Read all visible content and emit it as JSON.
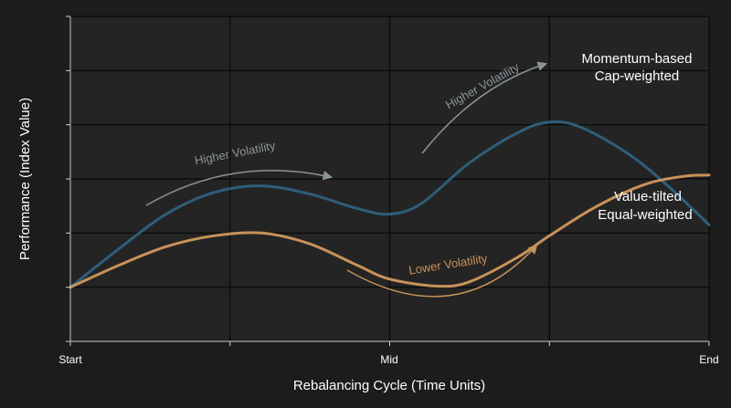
{
  "chart_data": {
    "type": "line",
    "title": "",
    "xlabel": "Rebalancing Cycle (Time Units)",
    "ylabel": "Performance (Index Value)",
    "x_tick_labels": [
      "Start",
      "Mid",
      "End"
    ],
    "xlim": [
      0,
      4
    ],
    "ylim": [
      0,
      6
    ],
    "grid": true,
    "series": [
      {
        "name": "Momentum-based Cap-weighted",
        "label_lines": [
          "Momentum-based",
          "Cap-weighted"
        ],
        "color": "#2f5e7a",
        "points": [
          [
            0,
            1.0
          ],
          [
            0.3,
            1.7
          ],
          [
            0.6,
            2.35
          ],
          [
            0.9,
            2.75
          ],
          [
            1.2,
            2.87
          ],
          [
            1.5,
            2.72
          ],
          [
            1.8,
            2.45
          ],
          [
            2.0,
            2.35
          ],
          [
            2.2,
            2.55
          ],
          [
            2.5,
            3.3
          ],
          [
            2.8,
            3.85
          ],
          [
            3.0,
            4.05
          ],
          [
            3.2,
            3.95
          ],
          [
            3.5,
            3.45
          ],
          [
            3.75,
            2.85
          ],
          [
            4.0,
            2.15
          ]
        ]
      },
      {
        "name": "Value-tilted Equal-weighted",
        "label_lines": [
          "Value-tilted",
          "Equal-weighted"
        ],
        "color": "#c8925a",
        "points": [
          [
            0,
            1.0
          ],
          [
            0.3,
            1.4
          ],
          [
            0.6,
            1.75
          ],
          [
            0.9,
            1.95
          ],
          [
            1.2,
            2.0
          ],
          [
            1.5,
            1.8
          ],
          [
            1.8,
            1.4
          ],
          [
            2.0,
            1.15
          ],
          [
            2.3,
            1.02
          ],
          [
            2.5,
            1.1
          ],
          [
            2.8,
            1.55
          ],
          [
            3.0,
            1.95
          ],
          [
            3.3,
            2.5
          ],
          [
            3.6,
            2.9
          ],
          [
            3.85,
            3.05
          ],
          [
            4.0,
            3.07
          ]
        ]
      }
    ],
    "annotations": [
      {
        "text": "Higher Volatility",
        "color": "#8a9598",
        "arrow_color": "#8a9598",
        "series": 0
      },
      {
        "text": "Higher Volatility",
        "color": "#8a9598",
        "arrow_color": "#8a9598",
        "series": 0
      },
      {
        "text": "Lower Volatility",
        "color": "#c8925a",
        "arrow_color": "#c8925a",
        "series": 1
      }
    ]
  },
  "colors": {
    "background": "#1c1c1c",
    "plot_area": "#242424",
    "gridline": "#0d0d0d",
    "axis": "#cfcfcf",
    "text": "#ffffff"
  }
}
